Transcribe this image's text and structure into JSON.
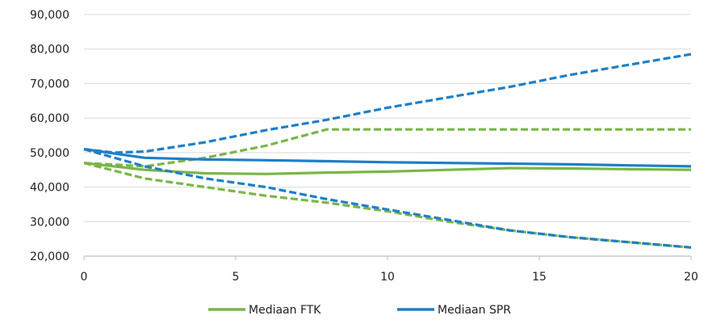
{
  "chart_data": {
    "type": "line",
    "title": "",
    "xlabel": "",
    "ylabel": "",
    "xlim": [
      0,
      20
    ],
    "ylim": [
      20000,
      90000
    ],
    "x_ticks": [
      {
        "value": 0,
        "label": "0"
      },
      {
        "value": 5,
        "label": "5"
      },
      {
        "value": 10,
        "label": "10"
      },
      {
        "value": 15,
        "label": "15"
      },
      {
        "value": 20,
        "label": "20"
      }
    ],
    "y_ticks": [
      {
        "value": 20000,
        "label": "20,000"
      },
      {
        "value": 30000,
        "label": "30,000"
      },
      {
        "value": 40000,
        "label": "40,000"
      },
      {
        "value": 50000,
        "label": "50,000"
      },
      {
        "value": 60000,
        "label": "60,000"
      },
      {
        "value": 70000,
        "label": "70,000"
      },
      {
        "value": 80000,
        "label": "80,000"
      },
      {
        "value": 90000,
        "label": "90,000"
      }
    ],
    "grid": "horizontal",
    "legend_position": "bottom",
    "colors": {
      "ftk": "#7ab648",
      "spr": "#1f7fc6",
      "grid": "#d9d9d9",
      "axis": "#bfbfbf"
    },
    "legend": [
      {
        "name": "Mediaan FTK",
        "color": "#7ab648"
      },
      {
        "name": "Mediaan SPR",
        "color": "#1f7fc6"
      }
    ],
    "series": [
      {
        "group": "ftk",
        "style": "dashed",
        "x": [
          0,
          2,
          4,
          6,
          8,
          10,
          12,
          14,
          16,
          18,
          20
        ],
        "values": [
          47000,
          46000,
          48500,
          52000,
          56700,
          56700,
          56700,
          56700,
          56700,
          56700,
          56700
        ]
      },
      {
        "group": "ftk",
        "style": "solid",
        "x": [
          0,
          2,
          4,
          6,
          8,
          10,
          12,
          14,
          16,
          18,
          20
        ],
        "values": [
          47000,
          45000,
          44000,
          43800,
          44200,
          44500,
          45000,
          45500,
          45400,
          45200,
          45000
        ]
      },
      {
        "group": "ftk",
        "style": "dashed",
        "x": [
          0,
          2,
          4,
          6,
          8,
          10,
          12,
          14,
          16,
          18,
          20
        ],
        "values": [
          47000,
          42500,
          40000,
          37500,
          35500,
          33000,
          30000,
          27500,
          25500,
          24000,
          22500
        ]
      },
      {
        "group": "spr",
        "style": "dashed",
        "x": [
          0,
          1,
          2,
          4,
          6,
          8,
          10,
          12,
          14,
          16,
          18,
          20
        ],
        "values": [
          51000,
          50000,
          50300,
          53000,
          56500,
          59500,
          63000,
          66000,
          69000,
          72500,
          75500,
          78500
        ]
      },
      {
        "group": "spr",
        "style": "solid",
        "x": [
          0,
          2,
          4,
          6,
          8,
          10,
          12,
          14,
          16,
          18,
          20
        ],
        "values": [
          51000,
          48500,
          48000,
          47800,
          47500,
          47200,
          47000,
          46800,
          46600,
          46300,
          46000
        ]
      },
      {
        "group": "spr",
        "style": "dashed",
        "x": [
          0,
          2,
          4,
          6,
          8,
          10,
          12,
          14,
          16,
          18,
          20
        ],
        "values": [
          51000,
          46000,
          42500,
          40000,
          36500,
          33500,
          30500,
          27500,
          25500,
          24000,
          22500
        ]
      }
    ]
  }
}
